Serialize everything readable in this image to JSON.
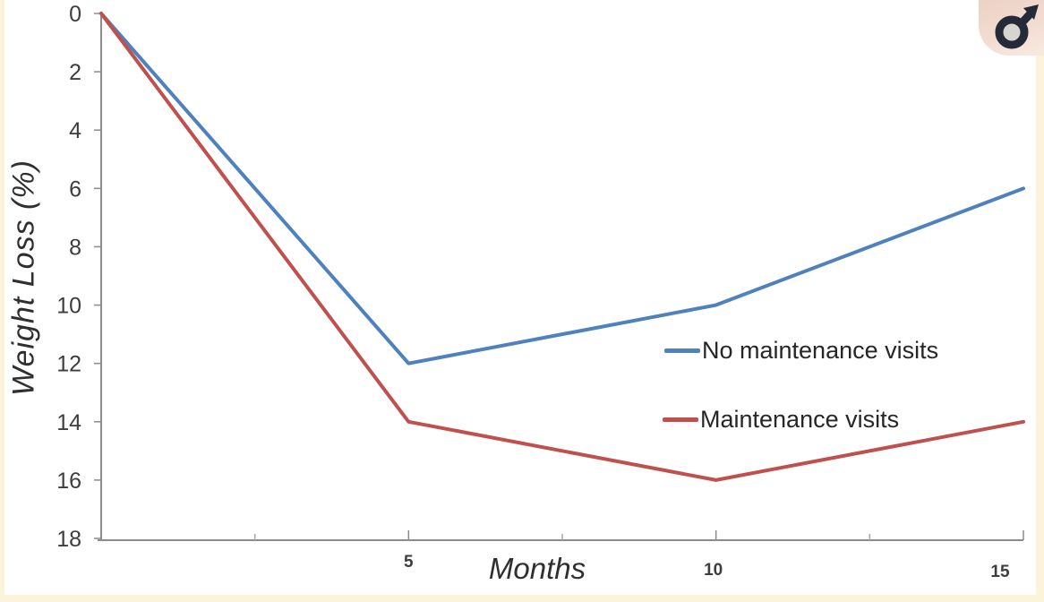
{
  "figure": {
    "badge_icon": "male-symbol",
    "badge_bg": "#eed5c8",
    "badge_symbol_color": "#252a38",
    "badge_symbol_fill": "#d6d5d0",
    "border_color": "#fbf4da",
    "axis_color": "#8c8c8c",
    "tick_label_color": "#3d3d3d"
  },
  "chart_data": {
    "type": "line",
    "title": "",
    "xlabel": "Months",
    "ylabel": "Weight Loss (%)",
    "x": [
      0,
      5,
      10,
      15
    ],
    "series": [
      {
        "name": "No maintenance visits",
        "color": "#4f81bd",
        "values": [
          0,
          12,
          10,
          6
        ]
      },
      {
        "name": "Maintenance visits",
        "color": "#c0504d",
        "values": [
          0,
          14,
          16,
          14
        ]
      }
    ],
    "xlim": [
      0,
      15
    ],
    "ylim": [
      0,
      18
    ],
    "y_axis_reversed": true,
    "yticks": [
      0,
      2,
      4,
      6,
      8,
      10,
      12,
      14,
      16,
      18
    ],
    "xticks": [
      5,
      10,
      15
    ],
    "x_minor_ticks": [
      2.5,
      7.5,
      12.5
    ],
    "grid": false,
    "legend_position": "middle-right",
    "line_width": 4
  }
}
